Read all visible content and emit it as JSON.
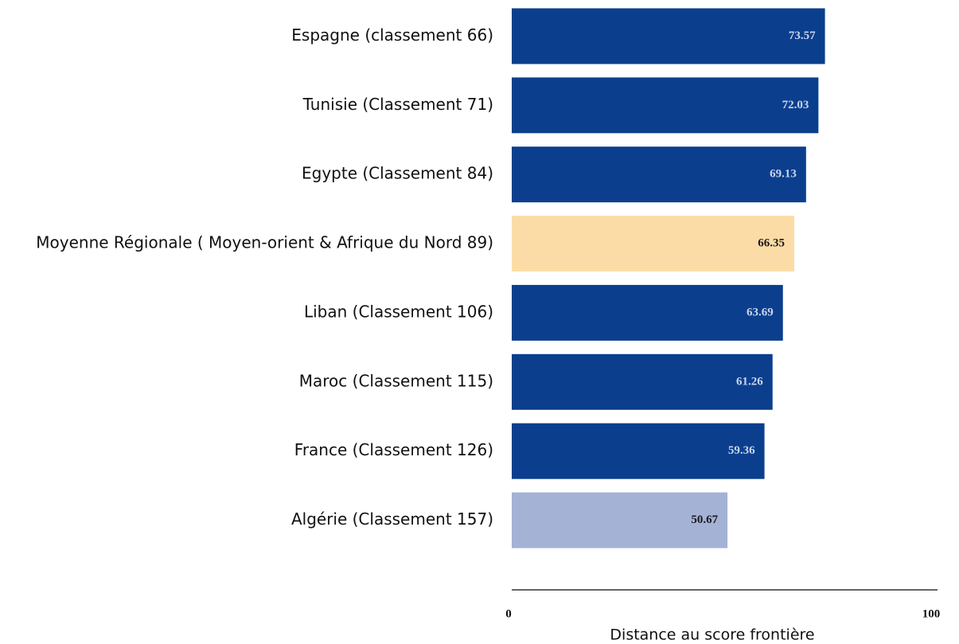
{
  "chart_data": {
    "type": "barh",
    "categories": [
      "Espagne (classement 66)",
      "Tunisie (Classement 71)",
      "Egypte (Classement 84)",
      "Moyenne Régionale ( Moyen-orient & Afrique du Nord 89)",
      "Liban (Classement 106)",
      "Maroc (Classement 115)",
      "France (Classement 126)",
      "Algérie (Classement 157)"
    ],
    "values": [
      73.57,
      72.03,
      69.13,
      66.35,
      63.69,
      61.26,
      59.36,
      50.67
    ],
    "colors": [
      "#0b3f8e",
      "#0b3f8e",
      "#0b3f8e",
      "#fcdca6",
      "#0b3f8e",
      "#0b3f8e",
      "#0b3f8e",
      "#a4b2d6"
    ],
    "label_colors": [
      "#c9d5ec",
      "#c9d5ec",
      "#c9d5ec",
      "#1a1a1a",
      "#c9d5ec",
      "#c9d5ec",
      "#c9d5ec",
      "#1a1a1a"
    ],
    "xlim": [
      0,
      100
    ],
    "xticks": [
      0,
      100
    ],
    "xlabel": "Distance au score frontière"
  }
}
